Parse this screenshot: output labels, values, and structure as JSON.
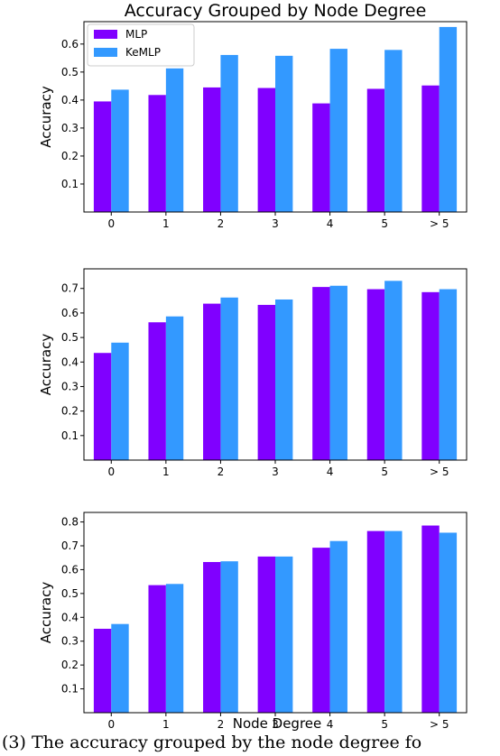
{
  "colors": {
    "MLP": "#8000ff",
    "KeMLP": "#3399ff"
  },
  "chart_data": [
    {
      "type": "bar",
      "title": "Accuracy Grouped by Node Degree",
      "xlabel": "",
      "ylabel": "Accuracy",
      "ylim": [
        0,
        0.68
      ],
      "yticks": [
        "0.1",
        "0.2",
        "0.3",
        "0.4",
        "0.5",
        "0.6"
      ],
      "categories": [
        "0",
        "1",
        "2",
        "3",
        "4",
        "5",
        "> 5"
      ],
      "legend": {
        "placement": "top-left",
        "entries": [
          "MLP",
          "KeMLP"
        ]
      },
      "series": [
        {
          "name": "MLP",
          "values": [
            0.395,
            0.418,
            0.445,
            0.443,
            0.388,
            0.44,
            0.452
          ]
        },
        {
          "name": "KeMLP",
          "values": [
            0.437,
            0.513,
            0.561,
            0.558,
            0.583,
            0.579,
            0.661
          ]
        }
      ]
    },
    {
      "type": "bar",
      "title": "",
      "xlabel": "",
      "ylabel": "Accuracy",
      "ylim": [
        0,
        0.78
      ],
      "yticks": [
        "0.1",
        "0.2",
        "0.3",
        "0.4",
        "0.5",
        "0.6",
        "0.7"
      ],
      "categories": [
        "0",
        "1",
        "2",
        "3",
        "4",
        "5",
        "> 5"
      ],
      "series": [
        {
          "name": "MLP",
          "values": [
            0.437,
            0.562,
            0.638,
            0.633,
            0.706,
            0.697,
            0.685
          ]
        },
        {
          "name": "KeMLP",
          "values": [
            0.479,
            0.586,
            0.663,
            0.655,
            0.711,
            0.731,
            0.697
          ]
        }
      ]
    },
    {
      "type": "bar",
      "title": "",
      "xlabel": "Node Degree",
      "ylabel": "Accuracy",
      "ylim": [
        0,
        0.84
      ],
      "yticks": [
        "0.1",
        "0.2",
        "0.3",
        "0.4",
        "0.5",
        "0.6",
        "0.7",
        "0.8"
      ],
      "categories": [
        "0",
        "1",
        "2",
        "3",
        "4",
        "5",
        "> 5"
      ],
      "series": [
        {
          "name": "MLP",
          "values": [
            0.352,
            0.535,
            0.632,
            0.655,
            0.692,
            0.762,
            0.785
          ]
        },
        {
          "name": "KeMLP",
          "values": [
            0.372,
            0.54,
            0.635,
            0.655,
            0.72,
            0.762,
            0.755
          ]
        }
      ]
    }
  ],
  "caption": "(3)   The accuracy grouped by the node degree fo"
}
